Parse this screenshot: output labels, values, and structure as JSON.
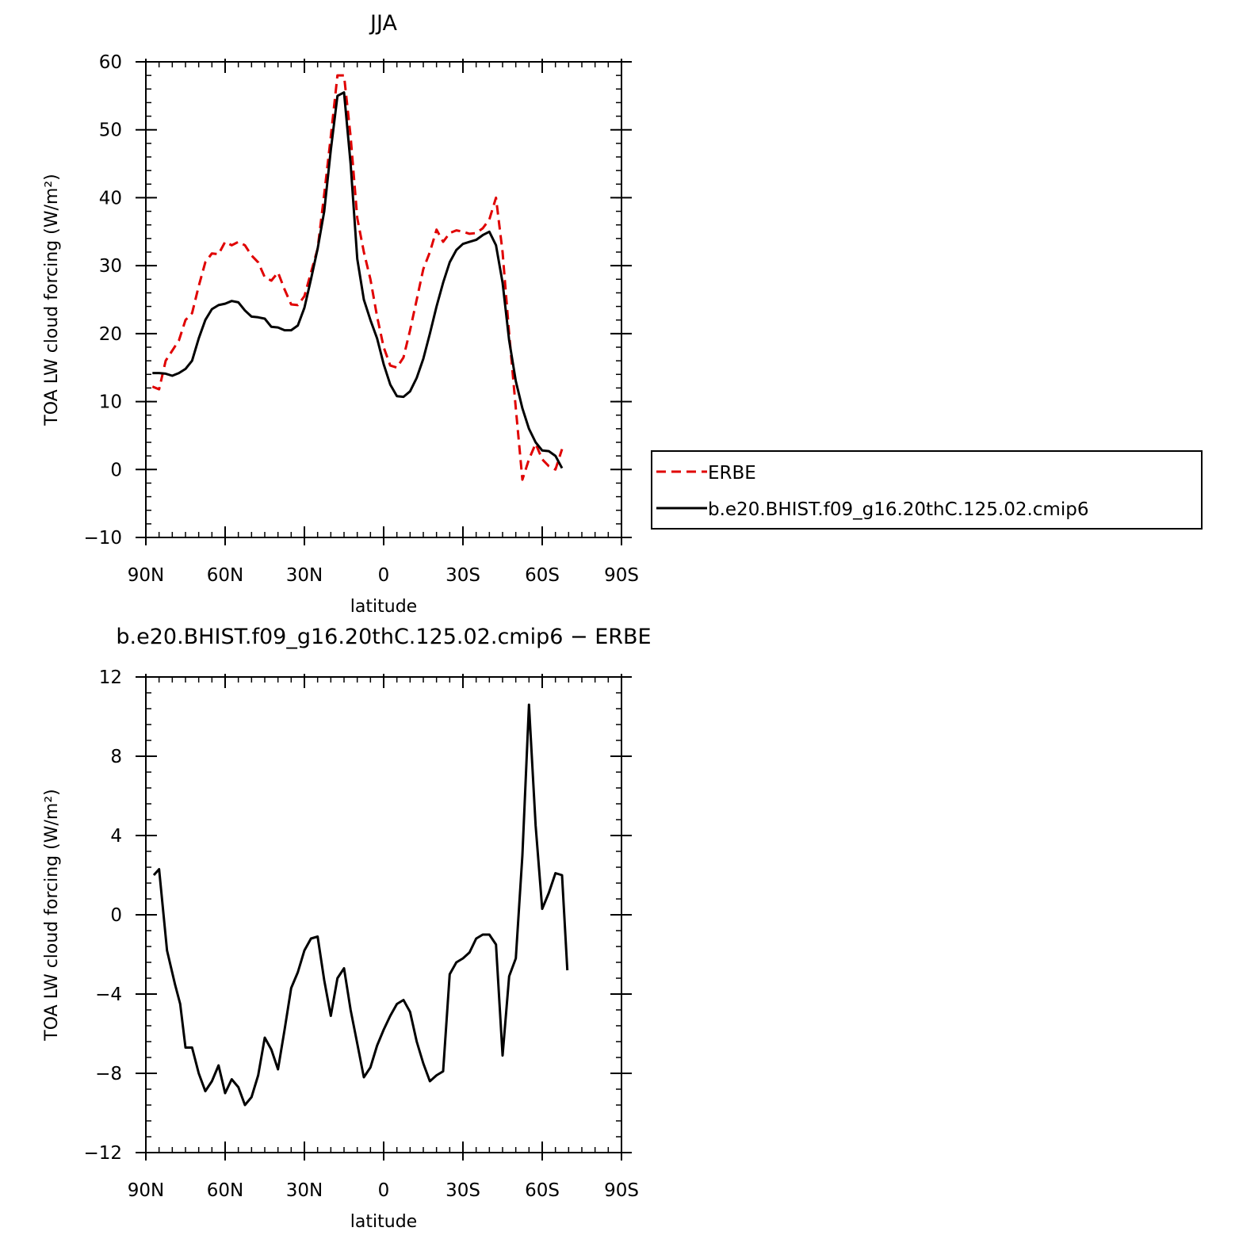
{
  "chart_data": [
    {
      "type": "line",
      "title": "JJA",
      "xlabel": "latitude",
      "ylabel": "TOA LW cloud forcing (W/m²)",
      "xlim": [
        90,
        -90
      ],
      "ylim": [
        -10,
        60
      ],
      "x_ticks": [
        90,
        60,
        30,
        0,
        -30,
        -60,
        -90
      ],
      "x_tick_labels": [
        "90N",
        "60N",
        "30N",
        "0",
        "30S",
        "60S",
        "90S"
      ],
      "y_ticks": [
        60,
        50,
        40,
        30,
        20,
        10,
        0,
        -10
      ],
      "y_tick_labels": [
        "60",
        "50",
        "40",
        "30",
        "20",
        "10",
        "0",
        "−10"
      ],
      "legend": "right",
      "series": [
        {
          "name": "ERBE",
          "color": "#e00000",
          "style": "dashed",
          "points": [
            [
              87.5,
              12.2
            ],
            [
              85,
              11.8
            ],
            [
              82.5,
              16
            ],
            [
              80,
              17.5
            ],
            [
              77.5,
              19
            ],
            [
              75,
              22
            ],
            [
              72.5,
              23
            ],
            [
              70,
              27
            ],
            [
              67.5,
              30.5
            ],
            [
              65,
              31.8
            ],
            [
              62.5,
              31.7
            ],
            [
              60,
              33.5
            ],
            [
              57.5,
              33
            ],
            [
              55,
              33.5
            ],
            [
              52.5,
              33
            ],
            [
              50,
              31.5
            ],
            [
              47.5,
              30.5
            ],
            [
              45,
              28.3
            ],
            [
              42.5,
              27.8
            ],
            [
              40,
              29
            ],
            [
              37.5,
              26.5
            ],
            [
              35,
              24.3
            ],
            [
              32.5,
              24.2
            ],
            [
              30,
              25.5
            ],
            [
              27.5,
              29
            ],
            [
              25,
              32.5
            ],
            [
              22.5,
              40.5
            ],
            [
              20,
              49
            ],
            [
              17.5,
              58
            ],
            [
              15,
              58
            ],
            [
              12.5,
              49
            ],
            [
              10,
              37
            ],
            [
              7.5,
              32
            ],
            [
              5,
              28
            ],
            [
              2.5,
              22.5
            ],
            [
              0,
              18
            ],
            [
              -2.5,
              15.3
            ],
            [
              -5,
              15
            ],
            [
              -7.5,
              16.5
            ],
            [
              -10,
              20.5
            ],
            [
              -12.5,
              25
            ],
            [
              -15,
              29.5
            ],
            [
              -17.5,
              32
            ],
            [
              -20,
              35.3
            ],
            [
              -22.5,
              33.5
            ],
            [
              -25,
              34.8
            ],
            [
              -27.5,
              35.2
            ],
            [
              -30,
              35
            ],
            [
              -32.5,
              34.7
            ],
            [
              -35,
              34.8
            ],
            [
              -37.5,
              35.5
            ],
            [
              -40,
              36.8
            ],
            [
              -42.5,
              40
            ],
            [
              -45,
              32
            ],
            [
              -47.5,
              20
            ],
            [
              -50,
              9
            ],
            [
              -52.5,
              -1.5
            ],
            [
              -55,
              1.5
            ],
            [
              -57.5,
              3.8
            ],
            [
              -60,
              1.5
            ],
            [
              -62.5,
              0.5
            ],
            [
              -65,
              0
            ],
            [
              -67.5,
              3
            ]
          ]
        },
        {
          "name": "b.e20.BHIST.f09_g16.20thC.125.02.cmip6",
          "color": "#000000",
          "style": "solid",
          "points": [
            [
              87.5,
              14.2
            ],
            [
              85,
              14.2
            ],
            [
              82.5,
              14.1
            ],
            [
              80,
              13.8
            ],
            [
              77.5,
              14.2
            ],
            [
              75,
              14.8
            ],
            [
              72.5,
              16
            ],
            [
              70,
              19.3
            ],
            [
              67.5,
              22
            ],
            [
              65,
              23.6
            ],
            [
              62.5,
              24.2
            ],
            [
              60,
              24.4
            ],
            [
              57.5,
              24.8
            ],
            [
              55,
              24.6
            ],
            [
              52.5,
              23.4
            ],
            [
              50,
              22.5
            ],
            [
              47.5,
              22.4
            ],
            [
              45,
              22.2
            ],
            [
              42.5,
              21
            ],
            [
              40,
              20.9
            ],
            [
              37.5,
              20.5
            ],
            [
              35,
              20.5
            ],
            [
              32.5,
              21.2
            ],
            [
              30,
              23.8
            ],
            [
              27.5,
              28
            ],
            [
              25,
              32.5
            ],
            [
              22.5,
              38
            ],
            [
              20,
              47
            ],
            [
              17.5,
              55
            ],
            [
              15,
              55.5
            ],
            [
              12.5,
              45
            ],
            [
              10,
              31
            ],
            [
              7.5,
              25
            ],
            [
              5,
              22
            ],
            [
              2.5,
              19.3
            ],
            [
              0,
              15.5
            ],
            [
              -2.5,
              12.5
            ],
            [
              -5,
              10.8
            ],
            [
              -7.5,
              10.7
            ],
            [
              -10,
              11.5
            ],
            [
              -12.5,
              13.5
            ],
            [
              -15,
              16.3
            ],
            [
              -17.5,
              20
            ],
            [
              -20,
              24
            ],
            [
              -22.5,
              27.5
            ],
            [
              -25,
              30.5
            ],
            [
              -27.5,
              32.3
            ],
            [
              -30,
              33.2
            ],
            [
              -32.5,
              33.5
            ],
            [
              -35,
              33.8
            ],
            [
              -37.5,
              34.5
            ],
            [
              -40,
              35
            ],
            [
              -42.5,
              33
            ],
            [
              -45,
              27.5
            ],
            [
              -47.5,
              19
            ],
            [
              -50,
              13
            ],
            [
              -52.5,
              9
            ],
            [
              -55,
              6
            ],
            [
              -57.5,
              4
            ],
            [
              -60,
              2.8
            ],
            [
              -62.5,
              2.7
            ],
            [
              -65,
              2
            ],
            [
              -67.5,
              0.2
            ]
          ]
        }
      ]
    },
    {
      "type": "line",
      "title": "b.e20.BHIST.f09_g16.20thC.125.02.cmip6 − ERBE",
      "xlabel": "latitude",
      "ylabel": "TOA LW cloud forcing (W/m²)",
      "xlim": [
        90,
        -90
      ],
      "ylim": [
        -12,
        12
      ],
      "x_ticks": [
        90,
        60,
        30,
        0,
        -30,
        -60,
        -90
      ],
      "x_tick_labels": [
        "90N",
        "60N",
        "30N",
        "0",
        "30S",
        "60S",
        "90S"
      ],
      "y_ticks": [
        12,
        8,
        4,
        0,
        -4,
        -8,
        -12
      ],
      "y_tick_labels": [
        "12",
        "8",
        "4",
        "0",
        "−4",
        "−8",
        "−12"
      ],
      "series": [
        {
          "color": "#000000",
          "style": "solid",
          "points": [
            [
              87,
              2
            ],
            [
              85,
              2.3
            ],
            [
              82,
              -1.8
            ],
            [
              79,
              -3.5
            ],
            [
              77,
              -4.5
            ],
            [
              75,
              -6.7
            ],
            [
              72.5,
              -6.7
            ],
            [
              70,
              -8
            ],
            [
              67.5,
              -8.9
            ],
            [
              65,
              -8.4
            ],
            [
              62.5,
              -7.6
            ],
            [
              60,
              -9
            ],
            [
              57.5,
              -8.3
            ],
            [
              55,
              -8.7
            ],
            [
              52.5,
              -9.6
            ],
            [
              50,
              -9.2
            ],
            [
              47.5,
              -8.1
            ],
            [
              45,
              -6.2
            ],
            [
              42.5,
              -6.8
            ],
            [
              40,
              -7.8
            ],
            [
              37.5,
              -5.8
            ],
            [
              35,
              -3.7
            ],
            [
              32.5,
              -2.9
            ],
            [
              30,
              -1.8
            ],
            [
              27.5,
              -1.2
            ],
            [
              25,
              -1.1
            ],
            [
              22.5,
              -3.3
            ],
            [
              20,
              -5.1
            ],
            [
              17.5,
              -3.2
            ],
            [
              15,
              -2.7
            ],
            [
              12.5,
              -4.8
            ],
            [
              10,
              -6.5
            ],
            [
              7.5,
              -8.2
            ],
            [
              5,
              -7.7
            ],
            [
              2.5,
              -6.6
            ],
            [
              0,
              -5.8
            ],
            [
              -2.5,
              -5.1
            ],
            [
              -5,
              -4.5
            ],
            [
              -7.5,
              -4.3
            ],
            [
              -10,
              -4.9
            ],
            [
              -12.5,
              -6.4
            ],
            [
              -15,
              -7.5
            ],
            [
              -17.5,
              -8.4
            ],
            [
              -20,
              -8.1
            ],
            [
              -22.5,
              -7.9
            ],
            [
              -25,
              -3
            ],
            [
              -27.5,
              -2.4
            ],
            [
              -30,
              -2.2
            ],
            [
              -32.5,
              -1.9
            ],
            [
              -35,
              -1.2
            ],
            [
              -37.5,
              -1
            ],
            [
              -40,
              -1
            ],
            [
              -42.5,
              -1.5
            ],
            [
              -45,
              -7.1
            ],
            [
              -47.5,
              -3.1
            ],
            [
              -50,
              -2.2
            ],
            [
              -52.5,
              3
            ],
            [
              -55,
              10.6
            ],
            [
              -57.5,
              4.5
            ],
            [
              -60,
              0.3
            ],
            [
              -62.5,
              1.1
            ],
            [
              -65,
              2.1
            ],
            [
              -67.5,
              2
            ],
            [
              -69.5,
              -2.8
            ]
          ]
        }
      ]
    }
  ]
}
